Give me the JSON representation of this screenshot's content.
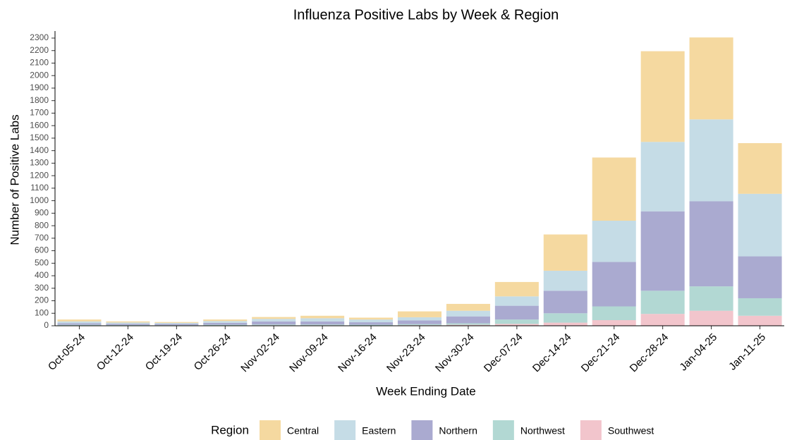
{
  "chart_data": {
    "type": "stacked_bar",
    "title": "Influenza Positive Labs by Week & Region",
    "x_label": "Week Ending Date",
    "y_label": "Number of Positive Labs",
    "legend_title": "Region",
    "legend_position": "bottom",
    "categories": [
      "Oct-05-24",
      "Oct-12-24",
      "Oct-19-24",
      "Oct-26-24",
      "Nov-02-24",
      "Nov-09-24",
      "Nov-16-24",
      "Nov-23-24",
      "Nov-30-24",
      "Dec-07-24",
      "Dec-14-24",
      "Dec-21-24",
      "Dec-28-24",
      "Jan-04-25",
      "Jan-11-25"
    ],
    "series": [
      {
        "name": "Southwest",
        "color": "#f2c5cc",
        "values": [
          3,
          2,
          2,
          3,
          4,
          4,
          3,
          5,
          8,
          15,
          25,
          45,
          95,
          120,
          80
        ]
      },
      {
        "name": "Northwest",
        "color": "#b2d8d3",
        "values": [
          5,
          4,
          3,
          5,
          6,
          6,
          5,
          8,
          12,
          35,
          75,
          110,
          185,
          195,
          140
        ]
      },
      {
        "name": "Northern",
        "color": "#aaaad0",
        "values": [
          12,
          10,
          10,
          15,
          25,
          25,
          20,
          30,
          55,
          110,
          180,
          355,
          635,
          680,
          335
        ]
      },
      {
        "name": "Eastern",
        "color": "#c5dce6",
        "values": [
          15,
          10,
          8,
          15,
          20,
          25,
          22,
          25,
          45,
          75,
          160,
          330,
          555,
          655,
          500
        ]
      },
      {
        "name": "Central",
        "color": "#f5d9a0",
        "values": [
          15,
          9,
          7,
          12,
          15,
          20,
          15,
          47,
          55,
          115,
          290,
          505,
          725,
          655,
          405
        ]
      }
    ],
    "ylim": [
      0,
      2300
    ],
    "yticks": [
      0,
      100,
      200,
      300,
      400,
      500,
      600,
      700,
      800,
      900,
      1000,
      1100,
      1200,
      1300,
      1400,
      1500,
      1600,
      1700,
      1800,
      1900,
      2000,
      2100,
      2200,
      2300
    ]
  }
}
